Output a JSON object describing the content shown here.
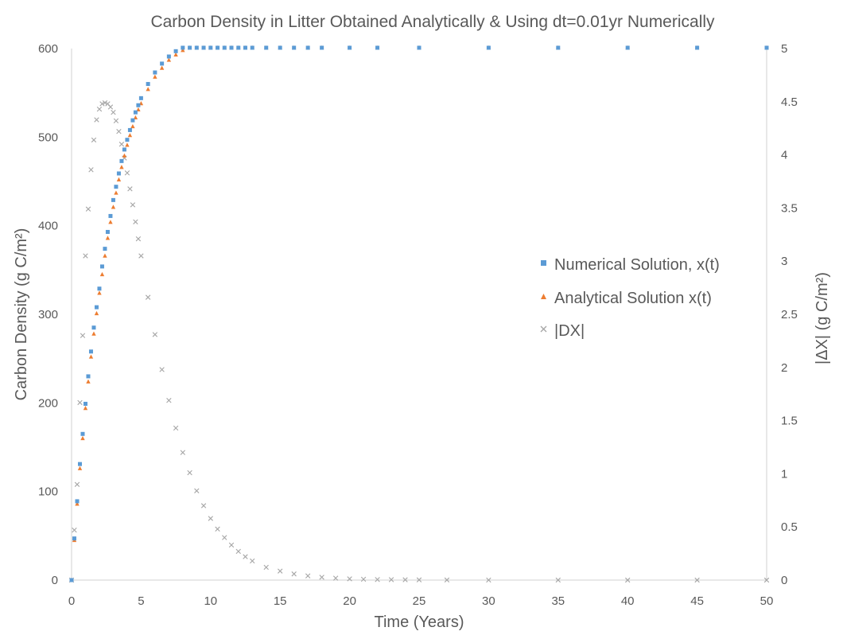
{
  "chart_data": {
    "type": "scatter",
    "title": "Carbon Density in Litter Obtained Analytically & Using dt=0.01yr Numerically",
    "xlabel": "Time (Years)",
    "ylabel_left": "Carbon Density   (g C/m²)",
    "ylabel_right": "|ΔX|   (g C/m²)",
    "xlim": [
      0,
      50
    ],
    "ylim_left": [
      0,
      600
    ],
    "ylim_right": [
      0,
      5
    ],
    "x_ticks": [
      "0",
      "5",
      "10",
      "15",
      "20",
      "25",
      "30",
      "35",
      "40",
      "45",
      "50"
    ],
    "y_left_ticks": [
      "0",
      "100",
      "200",
      "300",
      "400",
      "500",
      "600"
    ],
    "y_right_ticks": [
      "0",
      "0.5",
      "1",
      "1.5",
      "2",
      "2.5",
      "3",
      "3.5",
      "4",
      "4.5",
      "5"
    ],
    "grid": false,
    "legend_position": "right-center",
    "series": [
      {
        "name": "Numerical Solution, x(t)",
        "axis": "left",
        "marker": "square",
        "color": "#5B9BD5",
        "x": [
          0,
          0.2,
          0.4,
          0.6,
          0.8,
          1,
          1.2,
          1.4,
          1.6,
          1.8,
          2,
          2.2,
          2.4,
          2.6,
          2.8,
          3,
          3.2,
          3.4,
          3.6,
          3.8,
          4,
          4.2,
          4.4,
          4.6,
          4.8,
          5,
          5.5,
          6,
          6.5,
          7,
          7.5,
          8,
          8.5,
          9,
          9.5,
          10,
          10.5,
          11,
          11.5,
          12,
          12.5,
          13,
          14,
          15,
          16,
          17,
          18,
          20,
          22,
          25,
          30,
          35,
          40,
          45,
          50
        ],
        "values": [
          0,
          47,
          89,
          131,
          165,
          199,
          230,
          258,
          285,
          308,
          329,
          354,
          374,
          393,
          411,
          429,
          444,
          459,
          473,
          486,
          497,
          508,
          519,
          528,
          536,
          544,
          560,
          573,
          583,
          591,
          597,
          602,
          605,
          608,
          610,
          611,
          612,
          613,
          613,
          614,
          614,
          614,
          615,
          615,
          615,
          615,
          615,
          615,
          615,
          615,
          615,
          615,
          615,
          615,
          615
        ]
      },
      {
        "name": "Analytical Solution x(t)",
        "axis": "left",
        "marker": "triangle",
        "color": "#ED7D31",
        "x": [
          0,
          0.2,
          0.4,
          0.6,
          0.8,
          1,
          1.2,
          1.4,
          1.6,
          1.8,
          2,
          2.2,
          2.4,
          2.6,
          2.8,
          3,
          3.2,
          3.4,
          3.6,
          3.8,
          4,
          4.2,
          4.4,
          4.6,
          4.8,
          5,
          5.5,
          6,
          6.5,
          7,
          7.5,
          8,
          8.5,
          9,
          9.5,
          10,
          10.5,
          11,
          11.5,
          12,
          12.5,
          13,
          14,
          15,
          16,
          17,
          18,
          20,
          22,
          25,
          30,
          35,
          40,
          45,
          50
        ],
        "values": [
          0,
          45,
          86,
          126,
          160,
          194,
          224,
          252,
          278,
          301,
          324,
          345,
          366,
          386,
          404,
          421,
          437,
          452,
          466,
          479,
          491,
          502,
          512,
          522,
          531,
          538,
          554,
          568,
          578,
          587,
          593,
          598,
          602,
          605,
          608,
          609,
          610,
          611,
          612,
          613,
          613,
          613,
          614,
          614,
          614,
          615,
          615,
          615,
          615,
          615,
          615,
          615,
          615,
          615,
          615
        ]
      },
      {
        "name": "|DX|",
        "axis": "right",
        "marker": "x",
        "color": "#A5A5A5",
        "x": [
          0,
          0.2,
          0.4,
          0.6,
          0.8,
          1,
          1.2,
          1.4,
          1.6,
          1.8,
          2,
          2.2,
          2.4,
          2.6,
          2.8,
          3,
          3.2,
          3.4,
          3.6,
          3.8,
          4,
          4.2,
          4.4,
          4.6,
          4.8,
          5,
          5.5,
          6,
          6.5,
          7,
          7.5,
          8,
          8.5,
          9,
          9.5,
          10,
          10.5,
          11,
          11.5,
          12,
          12.5,
          13,
          14,
          15,
          16,
          17,
          18,
          19,
          20,
          21,
          22,
          23,
          24,
          25,
          27,
          30,
          35,
          40,
          45,
          50
        ],
        "values": [
          0,
          0.47,
          0.9,
          1.67,
          2.3,
          3.05,
          3.49,
          3.86,
          4.14,
          4.33,
          4.43,
          4.48,
          4.49,
          4.48,
          4.45,
          4.4,
          4.32,
          4.22,
          4.1,
          3.97,
          3.83,
          3.68,
          3.53,
          3.37,
          3.21,
          3.05,
          2.66,
          2.31,
          1.98,
          1.69,
          1.43,
          1.2,
          1.01,
          0.84,
          0.7,
          0.58,
          0.48,
          0.4,
          0.33,
          0.27,
          0.22,
          0.18,
          0.12,
          0.085,
          0.058,
          0.04,
          0.027,
          0.018,
          0.012,
          0.008,
          0.005,
          0.004,
          0.003,
          0.002,
          0.001,
          0.0005,
          0.0001,
          0,
          0,
          0
        ]
      }
    ]
  }
}
